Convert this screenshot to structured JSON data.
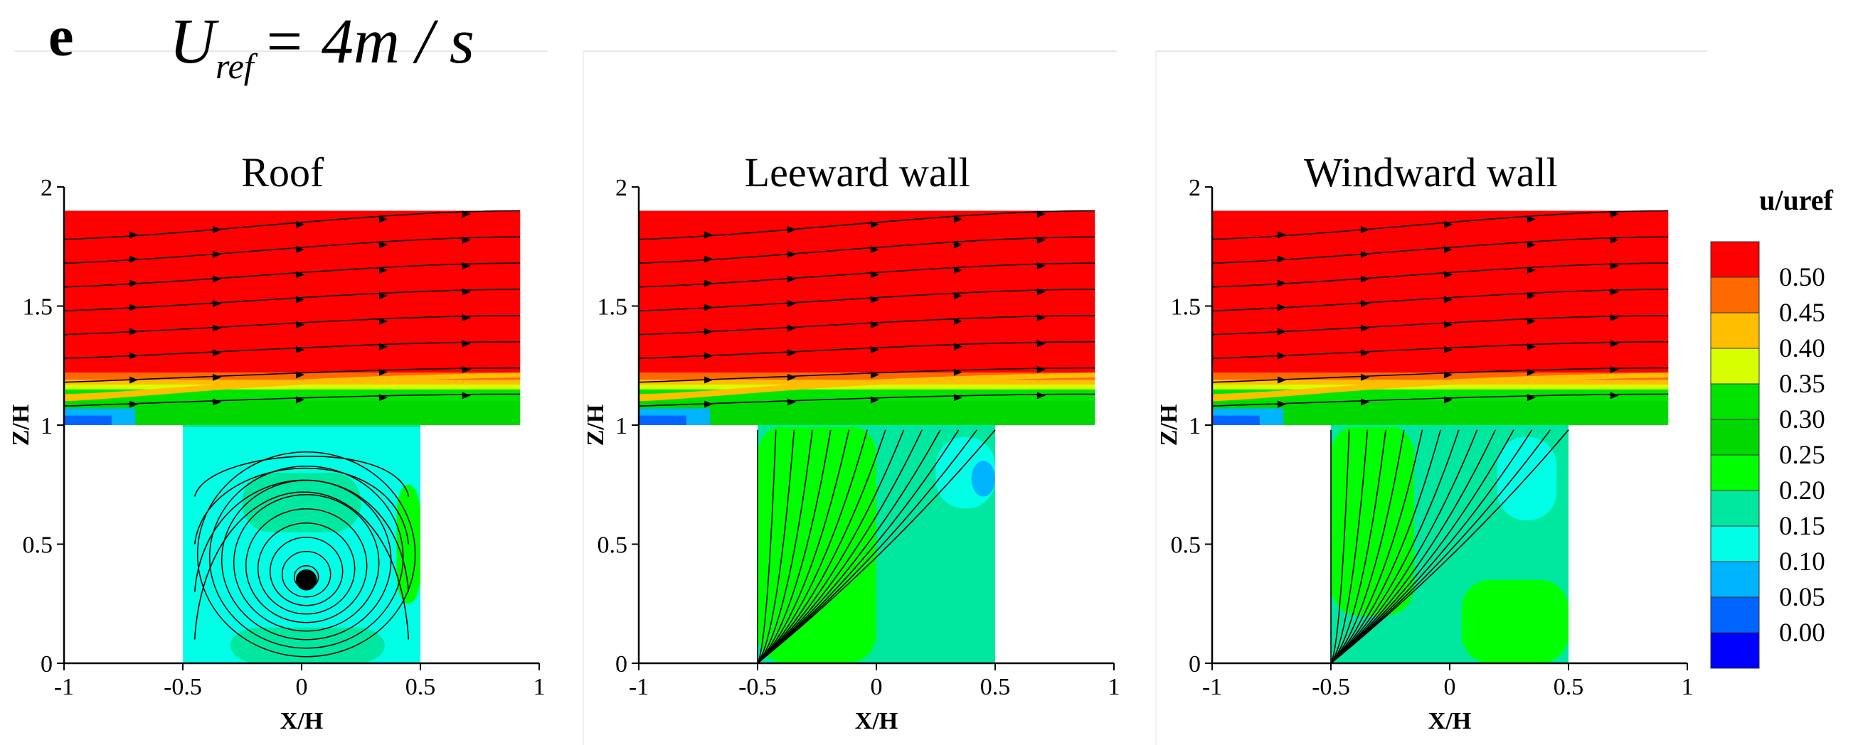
{
  "figure": {
    "panel_letter": "e",
    "formula_main": "U",
    "formula_sub": "ref",
    "formula_rhs": "= 4m / s"
  },
  "chart_data": [
    {
      "type": "heatmap",
      "title": "Roof",
      "xlabel": "X/H",
      "ylabel": "Z/H",
      "xlim": [
        -1,
        1
      ],
      "ylim": [
        0,
        2
      ],
      "x_ticks": [
        "-1",
        "-0.5",
        "0",
        "0.5",
        "1"
      ],
      "y_ticks": [
        "0",
        "0.5",
        "1",
        "1.5",
        "2"
      ],
      "canyon_x": [
        -0.5,
        0.5
      ],
      "canyon_height": 1,
      "domain_top": 1.9,
      "vortex_center": [
        0.02,
        0.35
      ],
      "contour_levels": [
        {
          "x0": -0.5,
          "x1": 0.5,
          "y0": 0,
          "y1": 1,
          "value": 0.1
        },
        {
          "x0": -0.3,
          "x1": 0.35,
          "y0": 0,
          "y1": 0.15,
          "value": 0.15
        },
        {
          "x0": -0.25,
          "x1": 0.25,
          "y0": 0.55,
          "y1": 0.8,
          "value": 0.15
        },
        {
          "x0": 0.4,
          "x1": 0.5,
          "y0": 0.25,
          "y1": 0.75,
          "value": 0.2
        }
      ],
      "grid": false
    },
    {
      "type": "heatmap",
      "title": "Leeward wall",
      "xlabel": "X/H",
      "ylabel": "Z/H",
      "xlim": [
        -1,
        1
      ],
      "ylim": [
        0,
        2
      ],
      "x_ticks": [
        "-1",
        "-0.5",
        "0",
        "0.5",
        "1"
      ],
      "y_ticks": [
        "0",
        "0.5",
        "1",
        "1.5",
        "2"
      ],
      "canyon_x": [
        -0.5,
        0.5
      ],
      "canyon_height": 1,
      "domain_top": 1.9,
      "source_point": [
        -0.5,
        0
      ],
      "contour_levels": [
        {
          "x0": -0.5,
          "x1": 0.5,
          "y0": 0,
          "y1": 1,
          "value": 0.15
        },
        {
          "x0": -0.5,
          "x1": 0.0,
          "y0": 0,
          "y1": 1,
          "value": 0.2
        },
        {
          "x0": 0.25,
          "x1": 0.5,
          "y0": 0.65,
          "y1": 0.95,
          "value": 0.1
        },
        {
          "x0": 0.4,
          "x1": 0.5,
          "y0": 0.7,
          "y1": 0.85,
          "value": 0.05
        }
      ],
      "grid": false
    },
    {
      "type": "heatmap",
      "title": "Windward wall",
      "xlabel": "X/H",
      "ylabel": "Z/H",
      "xlim": [
        -1,
        1
      ],
      "ylim": [
        0,
        2
      ],
      "x_ticks": [
        "-1",
        "-0.5",
        "0",
        "0.5",
        "1"
      ],
      "y_ticks": [
        "0",
        "0.5",
        "1",
        "1.5",
        "2"
      ],
      "canyon_x": [
        -0.5,
        0.5
      ],
      "canyon_height": 1,
      "domain_top": 1.9,
      "source_point": [
        -0.5,
        0
      ],
      "contour_levels": [
        {
          "x0": -0.5,
          "x1": 0.5,
          "y0": 0,
          "y1": 1,
          "value": 0.15
        },
        {
          "x0": -0.5,
          "x1": -0.15,
          "y0": 0.2,
          "y1": 1,
          "value": 0.2
        },
        {
          "x0": 0.05,
          "x1": 0.5,
          "y0": 0,
          "y1": 0.35,
          "value": 0.2
        },
        {
          "x0": 0.2,
          "x1": 0.45,
          "y0": 0.6,
          "y1": 0.95,
          "value": 0.1
        }
      ],
      "grid": false
    }
  ],
  "colorbar": {
    "title": "u/uref",
    "levels": [
      {
        "label": "0.50",
        "color": "#ff0000"
      },
      {
        "label": "0.45",
        "color": "#ff6a00"
      },
      {
        "label": "0.40",
        "color": "#ffbf00"
      },
      {
        "label": "0.35",
        "color": "#d8ff00"
      },
      {
        "label": "0.30",
        "color": "#00e400"
      },
      {
        "label": "0.25",
        "color": "#00d800"
      },
      {
        "label": "0.20",
        "color": "#00ff00"
      },
      {
        "label": "0.15",
        "color": "#00e8a0"
      },
      {
        "label": "0.10",
        "color": "#00ffe6"
      },
      {
        "label": "0.05",
        "color": "#00b4ff"
      },
      {
        "label": "0.00",
        "color": "#0064ff"
      }
    ],
    "bottom_color": "#0000ff"
  }
}
